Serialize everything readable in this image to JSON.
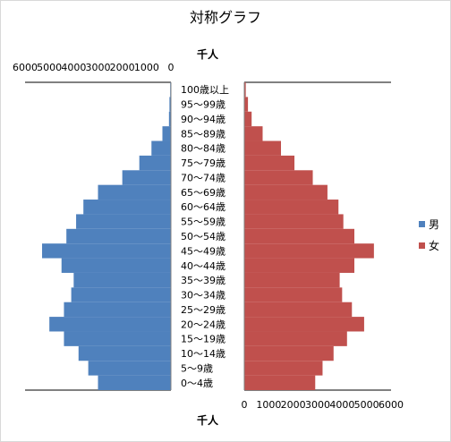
{
  "chart_data": {
    "type": "bar",
    "title": "対称グラフ",
    "unit_label_top": "千人",
    "unit_label_bottom": "千人",
    "categories": [
      "100歳以上",
      "95～99歳",
      "90～94歳",
      "85～89歳",
      "80～84歳",
      "75～79歳",
      "70～74歳",
      "65～69歳",
      "60～64歳",
      "55～59歳",
      "50～54歳",
      "45～49歳",
      "40～44歳",
      "35～39歳",
      "30～34歳",
      "25～29歳",
      "20～24歳",
      "15～19歳",
      "10～14歳",
      "5～9歳",
      "0～4歳"
    ],
    "xlim_left": [
      6000,
      0
    ],
    "xlim_right": [
      0,
      6000
    ],
    "ticks_left": [
      "6000",
      "5000",
      "4000",
      "3000",
      "2000",
      "1000",
      "0"
    ],
    "ticks_right": [
      "0",
      "1000",
      "2000",
      "3000",
      "4000",
      "5000",
      "6000"
    ],
    "series": [
      {
        "name": "男",
        "color": "#4f81bd",
        "values": [
          30,
          60,
          80,
          350,
          800,
          1300,
          2000,
          3000,
          3600,
          3900,
          4300,
          5300,
          4500,
          4000,
          4100,
          4400,
          5000,
          4400,
          3800,
          3400,
          3000
        ]
      },
      {
        "name": "女",
        "color": "#c0504d",
        "values": [
          60,
          150,
          300,
          750,
          1500,
          2050,
          2800,
          3400,
          3850,
          4050,
          4500,
          5300,
          4500,
          3900,
          4000,
          4400,
          4900,
          4200,
          3650,
          3200,
          2900
        ]
      }
    ],
    "legend_position": "right",
    "grid": false
  }
}
